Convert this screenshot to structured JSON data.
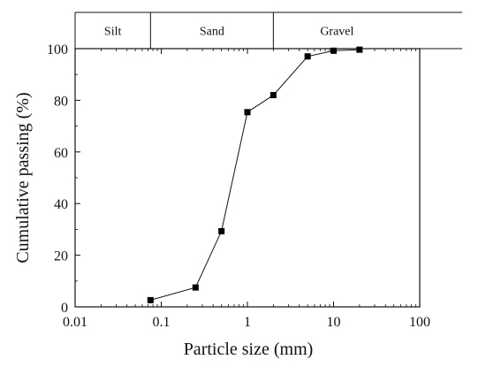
{
  "chart_data": {
    "type": "scatter",
    "mode": "line+markers",
    "xscale": "log",
    "xlim": [
      0.01,
      100
    ],
    "ylim": [
      0,
      100
    ],
    "xticks": [
      0.01,
      0.1,
      1,
      10,
      100
    ],
    "yticks": [
      0,
      20,
      40,
      60,
      80,
      100
    ],
    "xtick_labels": [
      "0.01",
      "0.1",
      "1",
      "10",
      "100"
    ],
    "ytick_labels": [
      "0",
      "20",
      "40",
      "60",
      "80",
      "100"
    ],
    "xlabel": "Particle size (mm)",
    "ylabel": "Cumulative passing (%)",
    "title": "",
    "grid": false,
    "series": [
      {
        "x": [
          0.075,
          0.25,
          0.5,
          1,
          2,
          5,
          10,
          20
        ],
        "y": [
          2.6,
          7.5,
          29.3,
          75.4,
          82.0,
          97.0,
          99.2,
          99.6
        ]
      }
    ],
    "size_bands": [
      {
        "label": "Silt",
        "from": 0.005,
        "to": 0.075
      },
      {
        "label": "Sand",
        "from": 0.075,
        "to": 2
      },
      {
        "label": "Gravel",
        "from": 2,
        "to": 60
      }
    ]
  },
  "colors": {
    "line": "#111111",
    "marker": "#000000",
    "axis": "#111111"
  }
}
